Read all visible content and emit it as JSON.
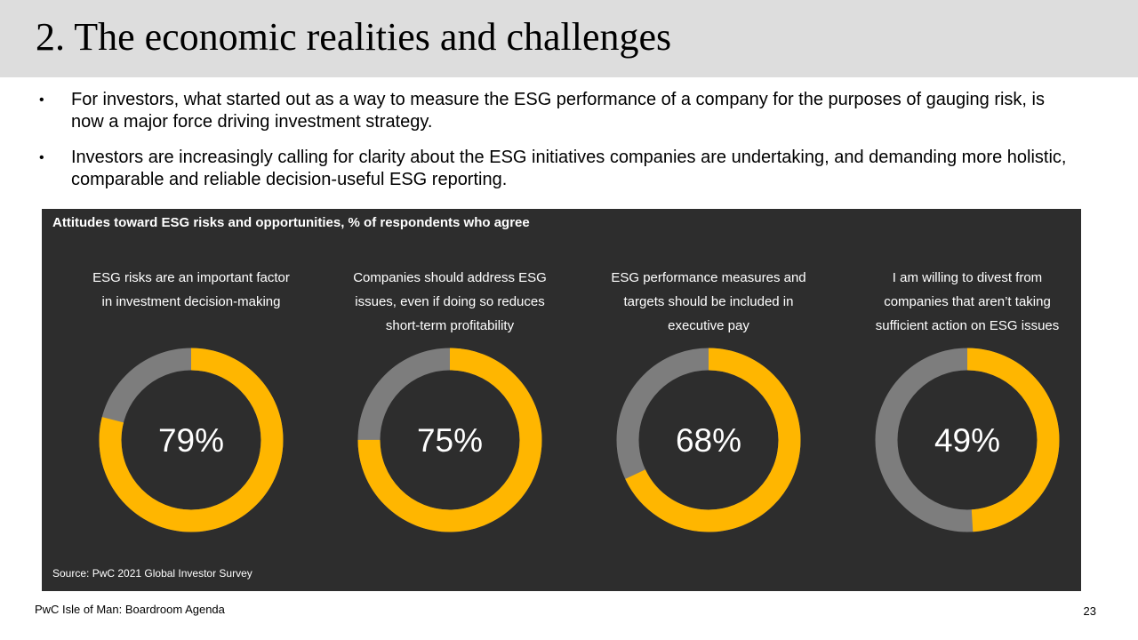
{
  "slide": {
    "title": "2. The economic realities and challenges",
    "bullets": [
      "For investors, what started out as a way to measure the ESG performance of a company for the purposes of gauging risk, is now a major force driving investment strategy.",
      "Investors are increasingly calling for clarity about the ESG initiatives companies are undertaking, and demanding more holistic, comparable and reliable decision-useful ESG reporting."
    ],
    "bullet_symbol": "•",
    "footer": "PwC Isle of Man: Boardroom Agenda",
    "page_number": "23"
  },
  "chart_data": {
    "type": "pie",
    "title": "Attitudes toward ESG risks and opportunities, % of respondents who agree",
    "source": "Source: PwC 2021 Global Investor Survey",
    "items": [
      {
        "label_lines": [
          "ESG risks are an important factor",
          "in investment decision-making"
        ],
        "value": 79,
        "value_label": "79%"
      },
      {
        "label_lines": [
          "Companies should address ESG",
          "issues, even if doing so reduces",
          "short-term profitability"
        ],
        "value": 75,
        "value_label": "75%"
      },
      {
        "label_lines": [
          "ESG performance measures and",
          "targets should be included in",
          "executive pay"
        ],
        "value": 68,
        "value_label": "68%"
      },
      {
        "label_lines": [
          "I am willing to divest from",
          "companies that aren’t taking",
          "sufficient action on ESG issues"
        ],
        "value": 49,
        "value_label": "49%"
      }
    ],
    "colors": {
      "agree": "#ffb600",
      "remainder": "#7d7d7d",
      "panel_background": "#2d2d2d",
      "text": "#ffffff"
    }
  }
}
